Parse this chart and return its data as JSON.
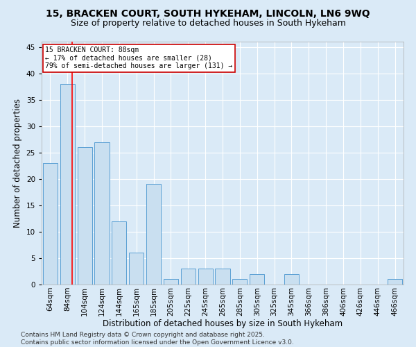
{
  "title_line1": "15, BRACKEN COURT, SOUTH HYKEHAM, LINCOLN, LN6 9WQ",
  "title_line2": "Size of property relative to detached houses in South Hykeham",
  "xlabel": "Distribution of detached houses by size in South Hykeham",
  "ylabel": "Number of detached properties",
  "categories": [
    "64sqm",
    "84sqm",
    "104sqm",
    "124sqm",
    "144sqm",
    "165sqm",
    "185sqm",
    "205sqm",
    "225sqm",
    "245sqm",
    "265sqm",
    "285sqm",
    "305sqm",
    "325sqm",
    "345sqm",
    "366sqm",
    "386sqm",
    "406sqm",
    "426sqm",
    "446sqm",
    "466sqm"
  ],
  "values": [
    23,
    38,
    26,
    27,
    12,
    6,
    19,
    1,
    3,
    3,
    3,
    1,
    2,
    0,
    2,
    0,
    0,
    0,
    0,
    0,
    1
  ],
  "bar_color": "#c9dff0",
  "bar_edge_color": "#5a9fd4",
  "red_line_xdata": 1.25,
  "annotation_title": "15 BRACKEN COURT: 88sqm",
  "annotation_line1": "← 17% of detached houses are smaller (28)",
  "annotation_line2": "79% of semi-detached houses are larger (131) →",
  "annotation_box_color": "#ffffff",
  "annotation_box_edge": "#cc0000",
  "footer_line1": "Contains HM Land Registry data © Crown copyright and database right 2025.",
  "footer_line2": "Contains public sector information licensed under the Open Government Licence v3.0.",
  "bg_color": "#daeaf7",
  "plot_bg_color": "#daeaf7",
  "ylim": [
    0,
    46
  ],
  "yticks": [
    0,
    5,
    10,
    15,
    20,
    25,
    30,
    35,
    40,
    45
  ],
  "title_fontsize": 10,
  "subtitle_fontsize": 9,
  "axis_label_fontsize": 8.5,
  "tick_fontsize": 7.5,
  "footer_fontsize": 6.5
}
